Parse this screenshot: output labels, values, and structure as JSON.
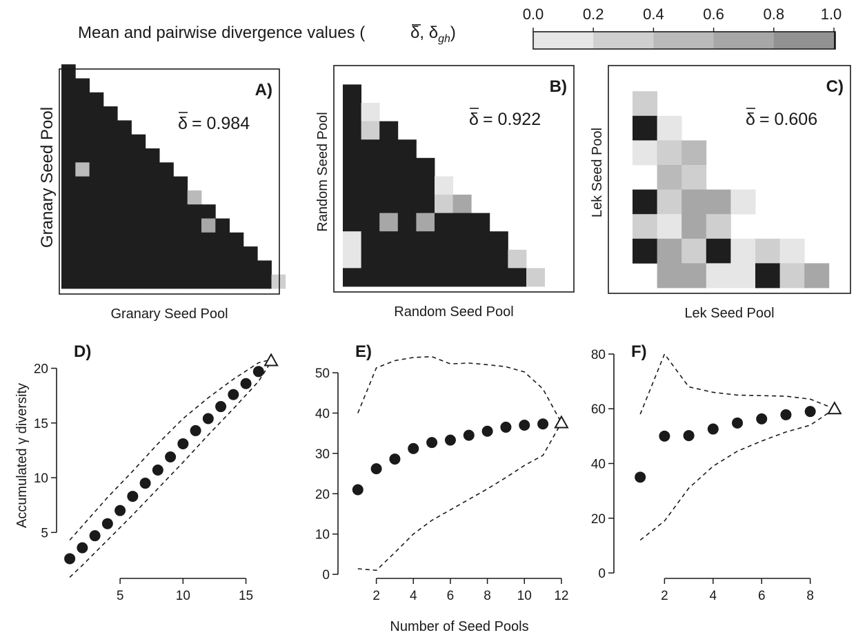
{
  "header": {
    "title": "Mean and pairwise divergence values (",
    "symbol_mean": "δ",
    "symbol_sep": ", ",
    "symbol_pair": "δ",
    "symbol_sub": "gh",
    "close": ")"
  },
  "colorbar": {
    "ticks": [
      "0.0",
      "0.2",
      "0.4",
      "0.6",
      "0.8",
      "1.0"
    ],
    "colors": [
      "#e6e6e6",
      "#cfcfcf",
      "#bababa",
      "#a7a7a7",
      "#929292",
      "#1e1e1e"
    ]
  },
  "chart_data": [
    {
      "type": "heatmap",
      "panel": "A)",
      "xlabel": "Granary Seed Pool",
      "ylabel": "Granary Seed Pool",
      "annotation_prefix": "δ",
      "annotation_value": "= 0.984",
      "n": 16,
      "note": "lower-triangular matrix, value class per cell (0-5 maps to colorbar colors)",
      "rows": [
        [
          5
        ],
        [
          5,
          5
        ],
        [
          5,
          5,
          5
        ],
        [
          5,
          5,
          5,
          5
        ],
        [
          5,
          5,
          5,
          5,
          5
        ],
        [
          5,
          5,
          5,
          5,
          5,
          5
        ],
        [
          5,
          5,
          5,
          5,
          5,
          5,
          5
        ],
        [
          5,
          2,
          5,
          5,
          5,
          5,
          5,
          5
        ],
        [
          5,
          5,
          5,
          5,
          5,
          5,
          5,
          5,
          5
        ],
        [
          5,
          5,
          5,
          5,
          5,
          5,
          5,
          5,
          5,
          2
        ],
        [
          5,
          5,
          5,
          5,
          5,
          5,
          5,
          5,
          5,
          5,
          5
        ],
        [
          5,
          5,
          5,
          5,
          5,
          5,
          5,
          5,
          5,
          5,
          3,
          5
        ],
        [
          5,
          5,
          5,
          5,
          5,
          5,
          5,
          5,
          5,
          5,
          5,
          5,
          5
        ],
        [
          5,
          5,
          5,
          5,
          5,
          5,
          5,
          5,
          5,
          5,
          5,
          5,
          5,
          5
        ],
        [
          5,
          5,
          5,
          5,
          5,
          5,
          5,
          5,
          5,
          5,
          5,
          5,
          5,
          5,
          5
        ],
        [
          5,
          5,
          5,
          5,
          5,
          5,
          5,
          5,
          5,
          5,
          5,
          5,
          5,
          5,
          5,
          1
        ]
      ]
    },
    {
      "type": "heatmap",
      "panel": "B)",
      "xlabel": "Random Seed Pool",
      "ylabel": "Random Seed Pool",
      "annotation_prefix": "δ",
      "annotation_value": "= 0.922",
      "n": 11,
      "rows": [
        [
          5
        ],
        [
          5,
          0
        ],
        [
          5,
          1,
          5
        ],
        [
          5,
          5,
          5,
          5
        ],
        [
          5,
          5,
          5,
          5,
          5
        ],
        [
          5,
          5,
          5,
          5,
          5,
          0
        ],
        [
          5,
          5,
          5,
          5,
          5,
          1,
          3
        ],
        [
          5,
          5,
          3,
          5,
          3,
          5,
          5,
          5
        ],
        [
          0,
          5,
          5,
          5,
          5,
          5,
          5,
          5,
          5
        ],
        [
          0,
          5,
          5,
          5,
          5,
          5,
          5,
          5,
          5,
          1
        ],
        [
          5,
          5,
          5,
          5,
          5,
          5,
          5,
          5,
          5,
          5,
          1
        ]
      ]
    },
    {
      "type": "heatmap",
      "panel": "C)",
      "xlabel": "Lek Seed Pool",
      "ylabel": "Lek Seed Pool",
      "annotation_prefix": "δ",
      "annotation_value": "= 0.606",
      "n": 8,
      "rows": [
        [
          1
        ],
        [
          5,
          0
        ],
        [
          0,
          1,
          2
        ],
        [
          -1,
          2,
          1,
          -1
        ],
        [
          5,
          1,
          3,
          3,
          0
        ],
        [
          1,
          0,
          3,
          1,
          -1,
          -1
        ],
        [
          5,
          3,
          1,
          5,
          0,
          1,
          0
        ],
        [
          -1,
          3,
          3,
          0,
          0,
          5,
          1,
          3
        ]
      ]
    },
    {
      "type": "scatter",
      "panel": "D)",
      "ylabel_pre": "Accumulated",
      "ylabel_sym": "γ",
      "ylabel_post": "diversity",
      "xlim": [
        0.5,
        17.6
      ],
      "ylim": [
        0.8,
        21.8
      ],
      "xticks": [
        "5",
        "10",
        "15"
      ],
      "yticks": [
        "5",
        "10",
        "15",
        "20"
      ],
      "x": [
        1,
        2,
        3,
        4,
        5,
        6,
        7,
        8,
        9,
        10,
        11,
        12,
        13,
        14,
        15,
        16
      ],
      "y": [
        2.6,
        3.6,
        4.7,
        5.8,
        7.0,
        8.3,
        9.5,
        10.7,
        11.9,
        13.1,
        14.3,
        15.4,
        16.5,
        17.6,
        18.6,
        19.7
      ],
      "final_x": 17,
      "final_y": 20.7,
      "upper_x": [
        1,
        2,
        4,
        6,
        8,
        10,
        12,
        14,
        16,
        17
      ],
      "upper_y": [
        4.3,
        5.6,
        8.2,
        10.6,
        13.1,
        15.4,
        17.3,
        19.0,
        20.5,
        20.8
      ],
      "lower_x": [
        1,
        2,
        4,
        6,
        8,
        10,
        12,
        14,
        16,
        17
      ],
      "lower_y": [
        0.9,
        2.0,
        4.3,
        6.6,
        9.0,
        11.4,
        13.9,
        16.3,
        18.8,
        20.6
      ]
    },
    {
      "type": "scatter",
      "panel": "E)",
      "xlim": [
        0.3,
        12.6
      ],
      "ylim": [
        -1.0,
        56.0
      ],
      "xticks": [
        "2",
        "4",
        "6",
        "8",
        "10",
        "12"
      ],
      "yticks": [
        "0",
        "10",
        "20",
        "30",
        "40",
        "50"
      ],
      "x": [
        1,
        2,
        3,
        4,
        5,
        6,
        7,
        8,
        9,
        10,
        11
      ],
      "y": [
        21.0,
        26.2,
        28.6,
        31.2,
        32.7,
        33.3,
        34.5,
        35.5,
        36.5,
        37.0,
        37.3
      ],
      "final_x": 12,
      "final_y": 37.6,
      "upper_x": [
        1,
        2,
        3,
        4,
        5,
        6,
        7,
        8,
        9,
        10,
        11,
        12
      ],
      "upper_y": [
        40.0,
        51.2,
        53.0,
        53.8,
        54.0,
        52.2,
        52.4,
        52.0,
        51.5,
        50.2,
        46.0,
        37.6
      ],
      "lower_x": [
        1,
        2,
        3,
        4,
        5,
        6,
        7,
        8,
        9,
        10,
        11,
        12
      ],
      "lower_y": [
        1.4,
        1.0,
        5.4,
        10.0,
        13.4,
        16.0,
        18.6,
        21.2,
        24.0,
        27.0,
        29.5,
        37.6
      ]
    },
    {
      "type": "scatter",
      "panel": "F)",
      "xlim": [
        0.2,
        9.6
      ],
      "ylim": [
        -2.0,
        82.0
      ],
      "xticks": [
        "2",
        "4",
        "6",
        "8"
      ],
      "yticks": [
        "0",
        "20",
        "40",
        "60",
        "80"
      ],
      "x": [
        1,
        2,
        3,
        4,
        5,
        6,
        7,
        8
      ],
      "y": [
        35.0,
        50.0,
        50.2,
        52.6,
        54.8,
        56.3,
        57.8,
        59.0
      ],
      "final_x": 9,
      "final_y": 60.0,
      "upper_x": [
        1,
        2,
        3,
        4,
        5,
        6,
        7,
        8,
        9
      ],
      "upper_y": [
        58.0,
        80.0,
        68.0,
        66.0,
        65.0,
        64.8,
        64.6,
        63.5,
        60.0
      ],
      "lower_x": [
        1,
        2,
        3,
        4,
        5,
        6,
        7,
        8,
        9
      ],
      "lower_y": [
        12.0,
        19.0,
        31.0,
        39.0,
        44.5,
        48.2,
        51.5,
        54.0,
        60.0
      ]
    }
  ],
  "shared_xlabel": "Number of Seed Pools"
}
